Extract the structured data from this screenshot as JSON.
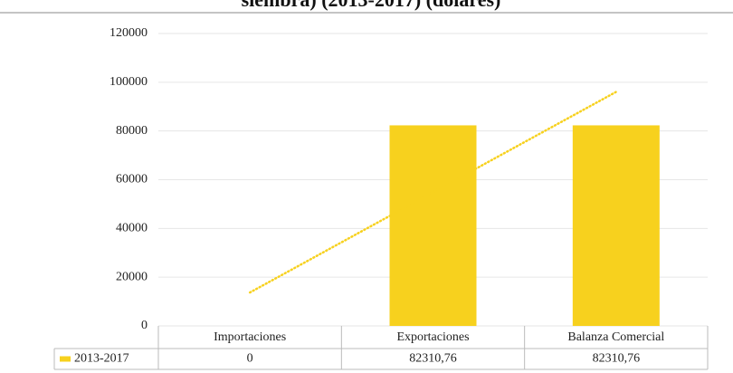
{
  "chart_data": {
    "type": "bar",
    "title": "siembra) (2013-2017) (dolares)",
    "categories": [
      "Importaciones",
      "Exportaciones",
      "Balanza Comercial"
    ],
    "series": [
      {
        "name": "2013-2017",
        "color": "#f7d11e",
        "values": [
          0,
          82310.76,
          82310.76
        ],
        "value_labels": [
          "0",
          "82310,76",
          "82310,76"
        ]
      }
    ],
    "ylim": [
      0,
      120000
    ],
    "yticks": [
      0,
      20000,
      40000,
      60000,
      80000,
      100000,
      120000
    ],
    "grid": true,
    "trendline": true,
    "data_table": true
  }
}
